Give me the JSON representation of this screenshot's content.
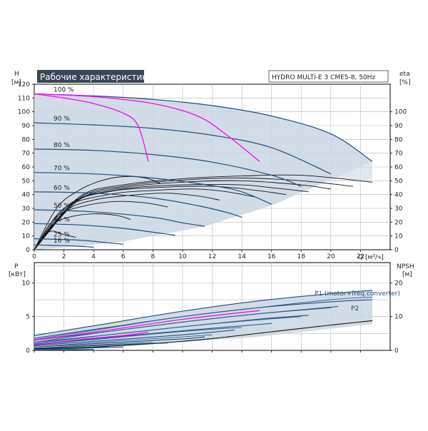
{
  "chart_data": [
    {
      "type": "line",
      "title": "Рабочие характеристики",
      "subtitle": "HYDRO MULTI-E 3 CME5-8, 50Hz",
      "xlabel": "Q [м³/ч]",
      "ylabel_left": "H\n[м]",
      "ylabel_right": "eta\n[%]",
      "xlim": [
        0,
        24
      ],
      "ylim": [
        0,
        120
      ],
      "xticks": [
        "0",
        "2",
        "4",
        "6",
        "8",
        "10",
        "12",
        "14",
        "16",
        "18",
        "20",
        "22"
      ],
      "yticks_left": [
        "0",
        "10",
        "20",
        "30",
        "40",
        "50",
        "60",
        "70",
        "80",
        "90",
        "100",
        "110",
        "120"
      ],
      "yticks_right": [
        "0",
        "10",
        "20",
        "30",
        "40",
        "50",
        "60",
        "70",
        "80",
        "90",
        "100"
      ],
      "grid": true,
      "envelope_color": "#c9d6e3",
      "head_curve_color": "#1f4e79",
      "eta_curve_color": "#111111",
      "highlight_color": "#ff00ff",
      "head_envelope": {
        "top": [
          [
            0,
            113
          ],
          [
            4,
            111.5
          ],
          [
            8,
            109
          ],
          [
            12,
            104.5
          ],
          [
            16,
            97
          ],
          [
            20,
            84
          ],
          [
            22.8,
            64
          ]
        ],
        "bottom_right": [
          [
            22.8,
            64
          ],
          [
            16,
            32
          ],
          [
            11.5,
            17
          ],
          [
            6,
            6
          ],
          [
            3,
            2.5
          ],
          [
            0,
            0
          ]
        ]
      },
      "eta_envelope": [
        [
          0,
          0
        ],
        [
          3,
          38
        ],
        [
          6,
          47
        ],
        [
          10,
          51.5
        ],
        [
          14,
          53.5
        ],
        [
          18,
          54
        ],
        [
          22.8,
          49
        ],
        [
          22.8,
          64
        ],
        [
          0,
          0
        ]
      ],
      "speed_curves": [
        {
          "name": "100 %",
          "points": [
            [
              0,
              113
            ],
            [
              4,
              111.5
            ],
            [
              8,
              109
            ],
            [
              12,
              104.5
            ],
            [
              16,
              97
            ],
            [
              20,
              84
            ],
            [
              22.8,
              64
            ]
          ]
        },
        {
          "name": "90 %",
          "points": [
            [
              0,
              92
            ],
            [
              4,
              90.5
            ],
            [
              8,
              88
            ],
            [
              12,
              83
            ],
            [
              16,
              74
            ],
            [
              20,
              55
            ]
          ]
        },
        {
          "name": "80 %",
          "points": [
            [
              0,
              73
            ],
            [
              4,
              72
            ],
            [
              8,
              69
            ],
            [
              12,
              63.5
            ],
            [
              16,
              54
            ],
            [
              18,
              46
            ]
          ]
        },
        {
          "name": "70 %",
          "points": [
            [
              0,
              56
            ],
            [
              4,
              55
            ],
            [
              8,
              52
            ],
            [
              12,
              46.5
            ],
            [
              14,
              42
            ],
            [
              16,
              33
            ]
          ]
        },
        {
          "name": "60 %",
          "points": [
            [
              0,
              42
            ],
            [
              4,
              41
            ],
            [
              8,
              37.5
            ],
            [
              11,
              32
            ],
            [
              13,
              27
            ],
            [
              14,
              23.5
            ]
          ]
        },
        {
          "name": "50 %",
          "points": [
            [
              0,
              29
            ],
            [
              4,
              27.5
            ],
            [
              8,
              23.5
            ],
            [
              10,
              19.5
            ],
            [
              11.5,
              17
            ]
          ]
        },
        {
          "name": "40 %",
          "points": [
            [
              0,
              19
            ],
            [
              3,
              18
            ],
            [
              6,
              15.5
            ],
            [
              8.5,
              12
            ],
            [
              9.5,
              10.5
            ]
          ]
        },
        {
          "name": "25 %",
          "points": [
            [
              0,
              8
            ],
            [
              3,
              7
            ],
            [
              5,
              5
            ],
            [
              6,
              4
            ]
          ]
        },
        {
          "name": "16 %",
          "points": [
            [
              0,
              3.5
            ],
            [
              2,
              3
            ],
            [
              3.5,
              2.2
            ],
            [
              4,
              1.8
            ]
          ]
        }
      ],
      "magenta_head_curves": [
        [
          [
            0,
            113
          ],
          [
            2,
            110
          ],
          [
            4,
            106
          ],
          [
            6,
            99
          ],
          [
            7,
            90
          ],
          [
            7.7,
            64
          ]
        ],
        [
          [
            0,
            113
          ],
          [
            4,
            111
          ],
          [
            8,
            106
          ],
          [
            11,
            97
          ],
          [
            13,
            83
          ],
          [
            15.2,
            64
          ]
        ]
      ],
      "eta_curves": [
        [
          [
            0,
            0
          ],
          [
            3,
            38
          ],
          [
            6,
            47
          ],
          [
            10,
            51.5
          ],
          [
            14,
            53.5
          ],
          [
            18,
            54
          ],
          [
            22.8,
            49
          ]
        ],
        [
          [
            0,
            0
          ],
          [
            3,
            37
          ],
          [
            6,
            46
          ],
          [
            10,
            50.5
          ],
          [
            14,
            52
          ],
          [
            18,
            50
          ],
          [
            21.5,
            46
          ]
        ],
        [
          [
            0,
            0
          ],
          [
            3,
            36
          ],
          [
            6,
            45
          ],
          [
            10,
            49
          ],
          [
            14,
            50
          ],
          [
            18,
            47
          ],
          [
            20,
            44
          ]
        ],
        [
          [
            0,
            0
          ],
          [
            2.5,
            34
          ],
          [
            6,
            44
          ],
          [
            10,
            47
          ],
          [
            14,
            47
          ],
          [
            16,
            45
          ],
          [
            18.5,
            42
          ]
        ],
        [
          [
            0,
            0
          ],
          [
            2.5,
            33
          ],
          [
            5,
            42
          ],
          [
            8,
            45
          ],
          [
            12,
            46
          ],
          [
            15,
            43
          ],
          [
            17,
            40
          ]
        ],
        [
          [
            0,
            0
          ],
          [
            2,
            30
          ],
          [
            5,
            40
          ],
          [
            8,
            43
          ],
          [
            11,
            44
          ],
          [
            13,
            42
          ],
          [
            15,
            38
          ]
        ],
        [
          [
            0,
            0
          ],
          [
            2,
            27
          ],
          [
            4,
            36
          ],
          [
            7,
            40
          ],
          [
            9,
            41
          ],
          [
            11,
            39
          ],
          [
            12.5,
            36
          ]
        ],
        [
          [
            0,
            0
          ],
          [
            1.5,
            24
          ],
          [
            3.5,
            32
          ],
          [
            5.5,
            35
          ],
          [
            7.5,
            34
          ],
          [
            9,
            31
          ]
        ],
        [
          [
            0,
            0
          ],
          [
            1.2,
            18
          ],
          [
            2.5,
            24
          ],
          [
            4,
            26
          ],
          [
            5.5,
            25
          ],
          [
            6.5,
            22
          ]
        ],
        [
          [
            0,
            0
          ],
          [
            1,
            13
          ],
          [
            2,
            11
          ],
          [
            2.8,
            9
          ]
        ],
        [
          [
            0,
            0
          ],
          [
            1.5,
            30
          ],
          [
            3,
            43
          ],
          [
            4.5,
            50
          ],
          [
            6,
            53
          ],
          [
            7.5,
            52
          ],
          [
            8.5,
            48
          ]
        ]
      ]
    },
    {
      "type": "line",
      "xlabel": "",
      "ylabel_left": "P\n[кВт]",
      "ylabel_right": "NPSH\n[м]",
      "xlim": [
        0,
        24
      ],
      "ylim": [
        0,
        13
      ],
      "ylim_right": [
        0,
        26
      ],
      "yticks_left": [
        "0",
        "5",
        "10"
      ],
      "yticks_right": [
        "0",
        "10",
        "20"
      ],
      "annotations": [
        "P1 (motor+freq.converter)",
        "P2"
      ],
      "grid": true,
      "envelope": [
        [
          0,
          2.2
        ],
        [
          5,
          4.0
        ],
        [
          10,
          5.8
        ],
        [
          15,
          7.3
        ],
        [
          20,
          8.4
        ],
        [
          22.8,
          8.9
        ],
        [
          22.8,
          3.9
        ],
        [
          15,
          2.0
        ],
        [
          8,
          0.9
        ],
        [
          3,
          0.2
        ],
        [
          0,
          0
        ]
      ],
      "p1_curves": [
        [
          [
            0,
            2.2
          ],
          [
            5,
            4.0
          ],
          [
            10,
            5.8
          ],
          [
            15,
            7.3
          ],
          [
            20,
            8.4
          ],
          [
            22.8,
            8.9
          ]
        ],
        [
          [
            0,
            1.8
          ],
          [
            5,
            3.4
          ],
          [
            10,
            5.0
          ],
          [
            15,
            6.3
          ],
          [
            20,
            7.2
          ],
          [
            22.8,
            7.5
          ]
        ],
        [
          [
            0,
            1.5
          ],
          [
            5,
            2.8
          ],
          [
            10,
            4.2
          ],
          [
            15,
            5.4
          ],
          [
            20.5,
            6.5
          ]
        ],
        [
          [
            0,
            1.2
          ],
          [
            5,
            2.3
          ],
          [
            10,
            3.5
          ],
          [
            15,
            4.6
          ],
          [
            18.5,
            5.2
          ]
        ],
        [
          [
            0,
            0.9
          ],
          [
            5,
            1.9
          ],
          [
            10,
            2.9
          ],
          [
            15,
            3.8
          ],
          [
            16,
            4.0
          ]
        ],
        [
          [
            0,
            0.7
          ],
          [
            5,
            1.5
          ],
          [
            10,
            2.3
          ],
          [
            13.5,
            3.0
          ]
        ],
        [
          [
            0,
            0.5
          ],
          [
            5,
            1.1
          ],
          [
            10,
            1.7
          ],
          [
            11.5,
            2.0
          ]
        ],
        [
          [
            0,
            0.3
          ],
          [
            4,
            0.7
          ],
          [
            9,
            1.1
          ]
        ],
        [
          [
            0,
            0.15
          ],
          [
            3,
            0.3
          ],
          [
            6,
            0.5
          ]
        ],
        [
          [
            0,
            0.05
          ],
          [
            2,
            0.1
          ],
          [
            4,
            0.15
          ]
        ]
      ],
      "p2_curves": [
        [
          [
            0,
            1.6
          ],
          [
            5,
            3.3
          ],
          [
            10,
            5.0
          ],
          [
            15,
            6.3
          ],
          [
            20,
            7.5
          ],
          [
            22.8,
            7.9
          ]
        ],
        [
          [
            0,
            1.2
          ],
          [
            5,
            2.8
          ],
          [
            10,
            4.2
          ],
          [
            15,
            5.4
          ],
          [
            20,
            6.3
          ]
        ],
        [
          [
            0,
            1.0
          ],
          [
            5,
            2.3
          ],
          [
            10,
            3.5
          ],
          [
            15,
            4.5
          ],
          [
            18,
            5.0
          ]
        ],
        [
          [
            0,
            0.8
          ],
          [
            5,
            1.8
          ],
          [
            10,
            2.8
          ],
          [
            14,
            3.4
          ]
        ],
        [
          [
            0,
            0.5
          ],
          [
            5,
            1.3
          ],
          [
            10,
            2.0
          ],
          [
            12,
            2.3
          ]
        ],
        [
          [
            0,
            0.3
          ],
          [
            4,
            0.8
          ],
          [
            8,
            1.2
          ]
        ],
        [
          [
            0,
            0.15
          ],
          [
            3,
            0.4
          ],
          [
            5,
            0.5
          ]
        ]
      ],
      "magenta_power_curves": [
        [
          [
            0,
            0.8
          ],
          [
            3,
            1.6
          ],
          [
            6,
            2.2
          ],
          [
            7.7,
            2.7
          ]
        ],
        [
          [
            0,
            1.5
          ],
          [
            5,
            3.0
          ],
          [
            10,
            4.6
          ],
          [
            15.2,
            5.9
          ]
        ]
      ],
      "npsh_curve": [
        [
          0,
          0.5
        ],
        [
          4,
          1.0
        ],
        [
          8,
          2.0
        ],
        [
          12,
          3.5
        ],
        [
          16,
          5.5
        ],
        [
          20,
          7.5
        ],
        [
          22.8,
          8.8
        ]
      ]
    }
  ]
}
